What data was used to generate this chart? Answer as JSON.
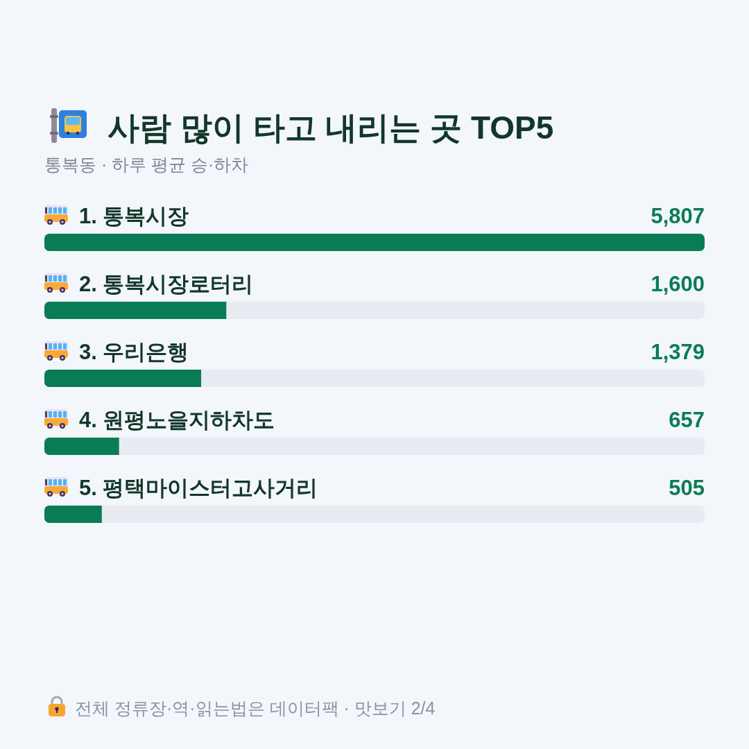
{
  "chart_data": {
    "type": "bar",
    "orientation": "horizontal",
    "title": "사람 많이 타고 내리는 곳 TOP5",
    "subtitle": "통복동 · 하루 평균 승·하차",
    "categories": [
      "1. 통복시장",
      "2. 통복시장로터리",
      "3. 우리은행",
      "4. 원평노을지하차도",
      "5. 평택마이스터고사거리"
    ],
    "values": [
      5807,
      1600,
      1379,
      657,
      505
    ],
    "color": "#0a7c55",
    "value_labels": [
      "5,807",
      "1,600",
      "1,379",
      "657",
      "505"
    ],
    "xlim": [
      0,
      5807
    ],
    "tick_labels": "y",
    "annotations": [
      "전체 정류장·역·읽는법은 데이터팩 · 맛보기 2/4"
    ]
  }
}
